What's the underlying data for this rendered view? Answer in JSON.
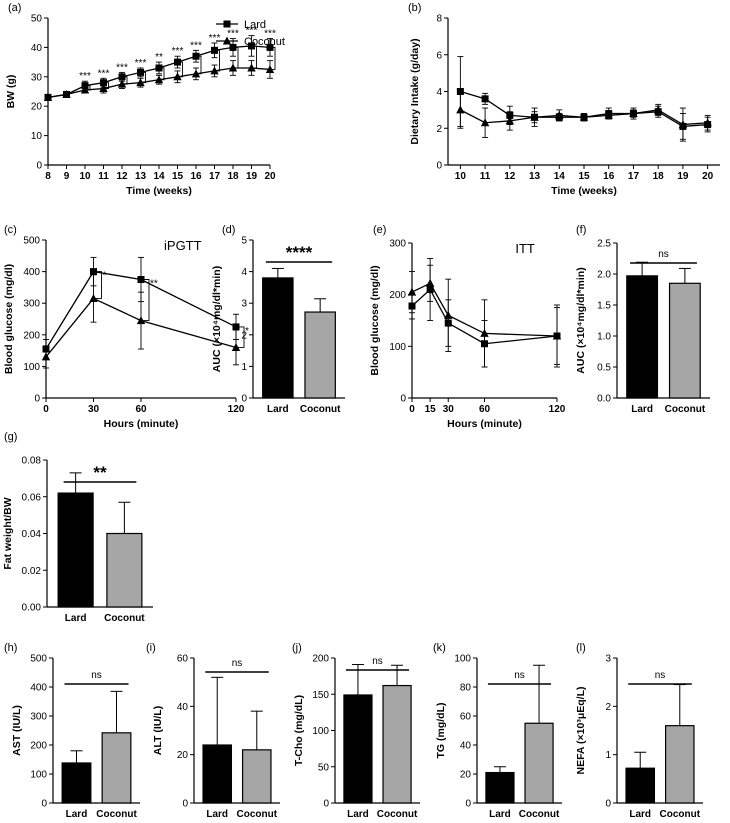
{
  "chart_data": [
    {
      "id": "a",
      "panel_label": "(a)",
      "type": "line",
      "title": "",
      "xlabel": "Time (weeks)",
      "ylabel": "BW (g)",
      "xlim": [
        8,
        20
      ],
      "ylim": [
        0,
        50
      ],
      "xticks": [
        8,
        9,
        10,
        11,
        12,
        13,
        14,
        15,
        16,
        17,
        18,
        19,
        20
      ],
      "yticks": [
        0,
        10,
        20,
        30,
        40,
        50
      ],
      "series": [
        {
          "name": "Lard",
          "marker": "square",
          "x": [
            8,
            9,
            10,
            11,
            12,
            13,
            14,
            15,
            16,
            17,
            18,
            19,
            20
          ],
          "y": [
            23,
            24,
            27,
            28,
            30,
            31.5,
            33,
            35,
            37,
            39,
            40,
            40.5,
            40
          ],
          "err": [
            1,
            1,
            1.5,
            1.5,
            1.5,
            1.5,
            2,
            2,
            2,
            2.5,
            3,
            3.5,
            3
          ]
        },
        {
          "name": "Coconut",
          "marker": "triangle",
          "x": [
            8,
            9,
            10,
            11,
            12,
            13,
            14,
            15,
            16,
            17,
            18,
            19,
            20
          ],
          "y": [
            23,
            24,
            25.5,
            26,
            27.5,
            28,
            29,
            30,
            31,
            32,
            33,
            33,
            32.5
          ],
          "err": [
            1,
            1,
            1,
            1.5,
            1.5,
            1.5,
            1.5,
            2,
            2,
            2,
            2.5,
            2.5,
            3
          ]
        }
      ],
      "legend": [
        "Lard",
        "Coconut"
      ],
      "significance": [
        {
          "x": 10,
          "label": "***"
        },
        {
          "x": 11,
          "label": "***"
        },
        {
          "x": 12,
          "label": "***"
        },
        {
          "x": 13,
          "label": "***"
        },
        {
          "x": 14,
          "label": "**"
        },
        {
          "x": 15,
          "label": "***"
        },
        {
          "x": 16,
          "label": "***"
        },
        {
          "x": 17,
          "label": "***"
        },
        {
          "x": 18,
          "label": "***"
        },
        {
          "x": 19,
          "label": "***"
        },
        {
          "x": 20,
          "label": "***"
        }
      ]
    },
    {
      "id": "b",
      "panel_label": "(b)",
      "type": "line",
      "title": "",
      "xlabel": "Time (weeks)",
      "ylabel": "Dietary Intake (g/day)",
      "xlim": [
        9.5,
        20.5
      ],
      "ylim": [
        0,
        8
      ],
      "xticks": [
        10,
        11,
        12,
        13,
        14,
        15,
        16,
        17,
        18,
        19,
        20
      ],
      "yticks": [
        0,
        2,
        4,
        6,
        8
      ],
      "series": [
        {
          "name": "Lard",
          "marker": "square",
          "x": [
            10,
            11,
            12,
            13,
            14,
            15,
            16,
            17,
            18,
            19,
            20
          ],
          "y": [
            4.0,
            3.6,
            2.7,
            2.6,
            2.6,
            2.6,
            2.8,
            2.8,
            2.9,
            2.1,
            2.2
          ],
          "err": [
            1.9,
            0.3,
            0.5,
            0.3,
            0.2,
            0.2,
            0.3,
            0.3,
            0.3,
            0.7,
            0.4
          ]
        },
        {
          "name": "Coconut",
          "marker": "triangle",
          "x": [
            10,
            11,
            12,
            13,
            14,
            15,
            16,
            17,
            18,
            19,
            20
          ],
          "y": [
            3.0,
            2.3,
            2.4,
            2.6,
            2.7,
            2.6,
            2.7,
            2.8,
            3.0,
            2.2,
            2.3
          ],
          "err": [
            1.0,
            0.8,
            0.5,
            0.5,
            0.3,
            0.2,
            0.2,
            0.2,
            0.3,
            0.9,
            0.4
          ]
        }
      ]
    },
    {
      "id": "c",
      "panel_label": "(c)",
      "type": "line",
      "title": "iPGTT",
      "xlabel": "Hours (minute)",
      "ylabel": "Blood glucose (mg/dl)",
      "xlim": [
        0,
        120
      ],
      "ylim": [
        0,
        500
      ],
      "xticks": [
        0,
        30,
        60,
        120
      ],
      "yticks": [
        0,
        100,
        200,
        300,
        400,
        500
      ],
      "series": [
        {
          "name": "Lard",
          "marker": "square",
          "x": [
            0,
            30,
            60,
            120
          ],
          "y": [
            155,
            400,
            375,
            225
          ],
          "err": [
            30,
            45,
            70,
            40
          ]
        },
        {
          "name": "Coconut",
          "marker": "triangle",
          "x": [
            0,
            30,
            60,
            120
          ],
          "y": [
            130,
            315,
            245,
            160
          ],
          "err": [
            35,
            75,
            90,
            55
          ]
        }
      ],
      "significance": [
        {
          "x": 30,
          "label": "*"
        },
        {
          "x": 60,
          "label": "**"
        },
        {
          "x": 120,
          "label": "*"
        }
      ]
    },
    {
      "id": "d",
      "panel_label": "(d)",
      "type": "bar",
      "title": "",
      "xlabel": "",
      "ylabel": "AUC (×10⁴mg/dl*min)",
      "categories": [
        "Lard",
        "Coconut"
      ],
      "values": [
        3.8,
        2.72
      ],
      "err": [
        0.3,
        0.42
      ],
      "ylim": [
        0,
        5
      ],
      "yticks": [
        0,
        1,
        2,
        3,
        4,
        5
      ],
      "tick_labels": [
        "0",
        "1",
        "2",
        "3",
        "4",
        "5"
      ],
      "significance": "****"
    },
    {
      "id": "e",
      "panel_label": "(e)",
      "type": "line",
      "title": "ITT",
      "xlabel": "Hours (minute)",
      "ylabel": "Blood glucose (mg/dl)",
      "xlim": [
        0,
        120
      ],
      "ylim": [
        0,
        300
      ],
      "xticks": [
        0,
        15,
        30,
        60,
        120
      ],
      "yticks": [
        0,
        100,
        200,
        300
      ],
      "series": [
        {
          "name": "Lard",
          "marker": "square",
          "x": [
            0,
            15,
            30,
            60,
            120
          ],
          "y": [
            178,
            210,
            145,
            105,
            120
          ],
          "err": [
            25,
            60,
            45,
            45,
            55
          ]
        },
        {
          "name": "Coconut",
          "marker": "triangle",
          "x": [
            0,
            15,
            30,
            60,
            120
          ],
          "y": [
            205,
            222,
            160,
            125,
            120
          ],
          "err": [
            40,
            35,
            70,
            65,
            60
          ]
        }
      ]
    },
    {
      "id": "f",
      "panel_label": "(f)",
      "type": "bar",
      "title": "",
      "xlabel": "",
      "ylabel": "AUC (×10⁴mg/dl*min)",
      "categories": [
        "Lard",
        "Coconut"
      ],
      "values": [
        1.97,
        1.85
      ],
      "err": [
        0.22,
        0.24
      ],
      "ylim": [
        0,
        2.5
      ],
      "yticks": [
        0,
        0.5,
        1,
        1.5,
        2,
        2.5
      ],
      "tick_labels": [
        "0.0",
        "0.5",
        "1.0",
        "1.5",
        "2.0",
        "2.5"
      ],
      "significance": "ns"
    },
    {
      "id": "g",
      "panel_label": "(g)",
      "type": "bar",
      "title": "",
      "xlabel": "",
      "ylabel": "Fat weight/BW",
      "categories": [
        "Lard",
        "Coconut"
      ],
      "values": [
        0.062,
        0.04
      ],
      "err": [
        0.011,
        0.017
      ],
      "ylim": [
        0,
        0.08
      ],
      "yticks": [
        0,
        0.02,
        0.04,
        0.06,
        0.08
      ],
      "tick_labels": [
        "0.00",
        "0.02",
        "0.04",
        "0.06",
        "0.08"
      ],
      "significance": "**"
    },
    {
      "id": "h",
      "panel_label": "(h)",
      "type": "bar",
      "title": "",
      "xlabel": "",
      "ylabel": "AST (IU/L)",
      "categories": [
        "Lard",
        "Coconut"
      ],
      "values": [
        138,
        242
      ],
      "err": [
        42,
        143
      ],
      "ylim": [
        0,
        500
      ],
      "yticks": [
        0,
        100,
        200,
        300,
        400,
        500
      ],
      "tick_labels": [
        "0",
        "100",
        "200",
        "300",
        "400",
        "500"
      ],
      "significance": "ns"
    },
    {
      "id": "i",
      "panel_label": "(i)",
      "type": "bar",
      "title": "",
      "xlabel": "",
      "ylabel": "ALT (IU/L)",
      "categories": [
        "Lard",
        "Coconut"
      ],
      "values": [
        24,
        22
      ],
      "err": [
        28,
        16
      ],
      "ylim": [
        0,
        60
      ],
      "yticks": [
        0,
        20,
        40,
        60
      ],
      "tick_labels": [
        "0",
        "20",
        "40",
        "60"
      ],
      "significance": "ns"
    },
    {
      "id": "j",
      "panel_label": "(j)",
      "type": "bar",
      "title": "",
      "xlabel": "",
      "ylabel": "T-Cho (mg/dL)",
      "categories": [
        "Lard",
        "Coconut"
      ],
      "values": [
        149,
        162
      ],
      "err": [
        42,
        28
      ],
      "ylim": [
        0,
        200
      ],
      "yticks": [
        0,
        50,
        100,
        150,
        200
      ],
      "tick_labels": [
        "0",
        "50",
        "100",
        "150",
        "200"
      ],
      "significance": "ns"
    },
    {
      "id": "k",
      "panel_label": "(k)",
      "type": "bar",
      "title": "",
      "xlabel": "",
      "ylabel": "TG (mg/dL)",
      "categories": [
        "Lard",
        "Coconut"
      ],
      "values": [
        21,
        55
      ],
      "err": [
        4,
        40
      ],
      "ylim": [
        0,
        100
      ],
      "yticks": [
        0,
        20,
        40,
        60,
        80,
        100
      ],
      "tick_labels": [
        "0",
        "20",
        "40",
        "60",
        "80",
        "100"
      ],
      "significance": "ns"
    },
    {
      "id": "l",
      "panel_label": "(l)",
      "type": "bar",
      "title": "",
      "xlabel": "",
      "ylabel": "NEFA (×10³μEq/L)",
      "categories": [
        "Lard",
        "Coconut"
      ],
      "values": [
        0.72,
        1.6
      ],
      "err": [
        0.33,
        0.85
      ],
      "ylim": [
        0,
        3
      ],
      "yticks": [
        0,
        1,
        2,
        3
      ],
      "tick_labels": [
        "0",
        "1",
        "2",
        "3"
      ],
      "significance": "ns"
    }
  ],
  "colors": {
    "lard": "#000000",
    "coconut": "#a6a6a6",
    "axis": "#000000"
  }
}
